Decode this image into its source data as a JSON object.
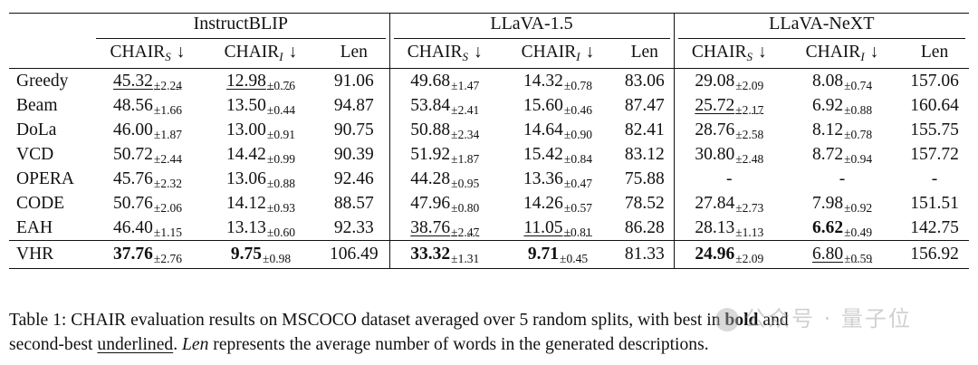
{
  "table": {
    "groups": [
      "InstructBLIP",
      "LLaVA-1.5",
      "LLaVA-NeXT"
    ],
    "metric_labels": {
      "chair_s_base": "CHAIR",
      "chair_s_sub": "S",
      "arrow": "↓",
      "chair_i_base": "CHAIR",
      "chair_i_sub": "I",
      "len": "Len"
    },
    "rows": [
      {
        "method": "Greedy",
        "cells": [
          {
            "v": "45.32",
            "s": "±2.24",
            "ul": true
          },
          {
            "v": "12.98",
            "s": "±0.76",
            "ul": true
          },
          {
            "v": "91.06"
          },
          {
            "v": "49.68",
            "s": "±1.47"
          },
          {
            "v": "14.32",
            "s": "±0.78"
          },
          {
            "v": "83.06"
          },
          {
            "v": "29.08",
            "s": "±2.09"
          },
          {
            "v": "8.08",
            "s": "±0.74"
          },
          {
            "v": "157.06"
          }
        ]
      },
      {
        "method": "Beam",
        "cells": [
          {
            "v": "48.56",
            "s": "±1.66"
          },
          {
            "v": "13.50",
            "s": "±0.44"
          },
          {
            "v": "94.87"
          },
          {
            "v": "53.84",
            "s": "±2.41"
          },
          {
            "v": "15.60",
            "s": "±0.46"
          },
          {
            "v": "87.47"
          },
          {
            "v": "25.72",
            "s": "±2.17",
            "ul": true
          },
          {
            "v": "6.92",
            "s": "±0.88"
          },
          {
            "v": "160.64"
          }
        ]
      },
      {
        "method": "DoLa",
        "cells": [
          {
            "v": "46.00",
            "s": "±1.87"
          },
          {
            "v": "13.00",
            "s": "±0.91"
          },
          {
            "v": "90.75"
          },
          {
            "v": "50.88",
            "s": "±2.34"
          },
          {
            "v": "14.64",
            "s": "±0.90"
          },
          {
            "v": "82.41"
          },
          {
            "v": "28.76",
            "s": "±2.58"
          },
          {
            "v": "8.12",
            "s": "±0.78"
          },
          {
            "v": "155.75"
          }
        ]
      },
      {
        "method": "VCD",
        "cells": [
          {
            "v": "50.72",
            "s": "±2.44"
          },
          {
            "v": "14.42",
            "s": "±0.99"
          },
          {
            "v": "90.39"
          },
          {
            "v": "51.92",
            "s": "±1.87"
          },
          {
            "v": "15.42",
            "s": "±0.84"
          },
          {
            "v": "83.12"
          },
          {
            "v": "30.80",
            "s": "±2.48"
          },
          {
            "v": "8.72",
            "s": "±0.94"
          },
          {
            "v": "157.72"
          }
        ]
      },
      {
        "method": "OPERA",
        "cells": [
          {
            "v": "45.76",
            "s": "±2.32"
          },
          {
            "v": "13.06",
            "s": "±0.88"
          },
          {
            "v": "92.46"
          },
          {
            "v": "44.28",
            "s": "±0.95"
          },
          {
            "v": "13.36",
            "s": "±0.47"
          },
          {
            "v": "75.88"
          },
          {
            "v": "-"
          },
          {
            "v": "-"
          },
          {
            "v": "-"
          }
        ]
      },
      {
        "method": "CODE",
        "cells": [
          {
            "v": "50.76",
            "s": "±2.06"
          },
          {
            "v": "14.12",
            "s": "±0.93"
          },
          {
            "v": "88.57"
          },
          {
            "v": "47.96",
            "s": "±0.80"
          },
          {
            "v": "14.26",
            "s": "±0.57"
          },
          {
            "v": "78.52"
          },
          {
            "v": "27.84",
            "s": "±2.73"
          },
          {
            "v": "7.98",
            "s": "±0.92"
          },
          {
            "v": "151.51"
          }
        ]
      },
      {
        "method": "EAH",
        "cells": [
          {
            "v": "46.40",
            "s": "±1.15"
          },
          {
            "v": "13.13",
            "s": "±0.60"
          },
          {
            "v": "92.33"
          },
          {
            "v": "38.76",
            "s": "±2.47",
            "ul": true
          },
          {
            "v": "11.05",
            "s": "±0.81",
            "ul": true
          },
          {
            "v": "86.28"
          },
          {
            "v": "28.13",
            "s": "±1.13"
          },
          {
            "v": "6.62",
            "s": "±0.49",
            "b": true
          },
          {
            "v": "142.75"
          }
        ]
      }
    ],
    "ours": {
      "method": "VHR",
      "cells": [
        {
          "v": "37.76",
          "s": "±2.76",
          "b": true
        },
        {
          "v": "9.75",
          "s": "±0.98",
          "b": true
        },
        {
          "v": "106.49"
        },
        {
          "v": "33.32",
          "s": "±1.31",
          "b": true
        },
        {
          "v": "9.71",
          "s": "±0.45",
          "b": true
        },
        {
          "v": "81.33"
        },
        {
          "v": "24.96",
          "s": "±2.09",
          "b": true
        },
        {
          "v": "6.80",
          "s": "±0.59",
          "ul": true
        },
        {
          "v": "156.92"
        }
      ]
    }
  },
  "caption": {
    "p1": "Table 1: CHAIR evaluation results on MSCOCO dataset averaged over 5 random splits, with best in ",
    "bold": "bold",
    "p2": " and",
    "p3": "second-best ",
    "underlined": "underlined",
    "p4": ". ",
    "len": "Len",
    "p5": " represents the average number of words in the generated descriptions."
  },
  "watermark": "公众号 · 量子位"
}
